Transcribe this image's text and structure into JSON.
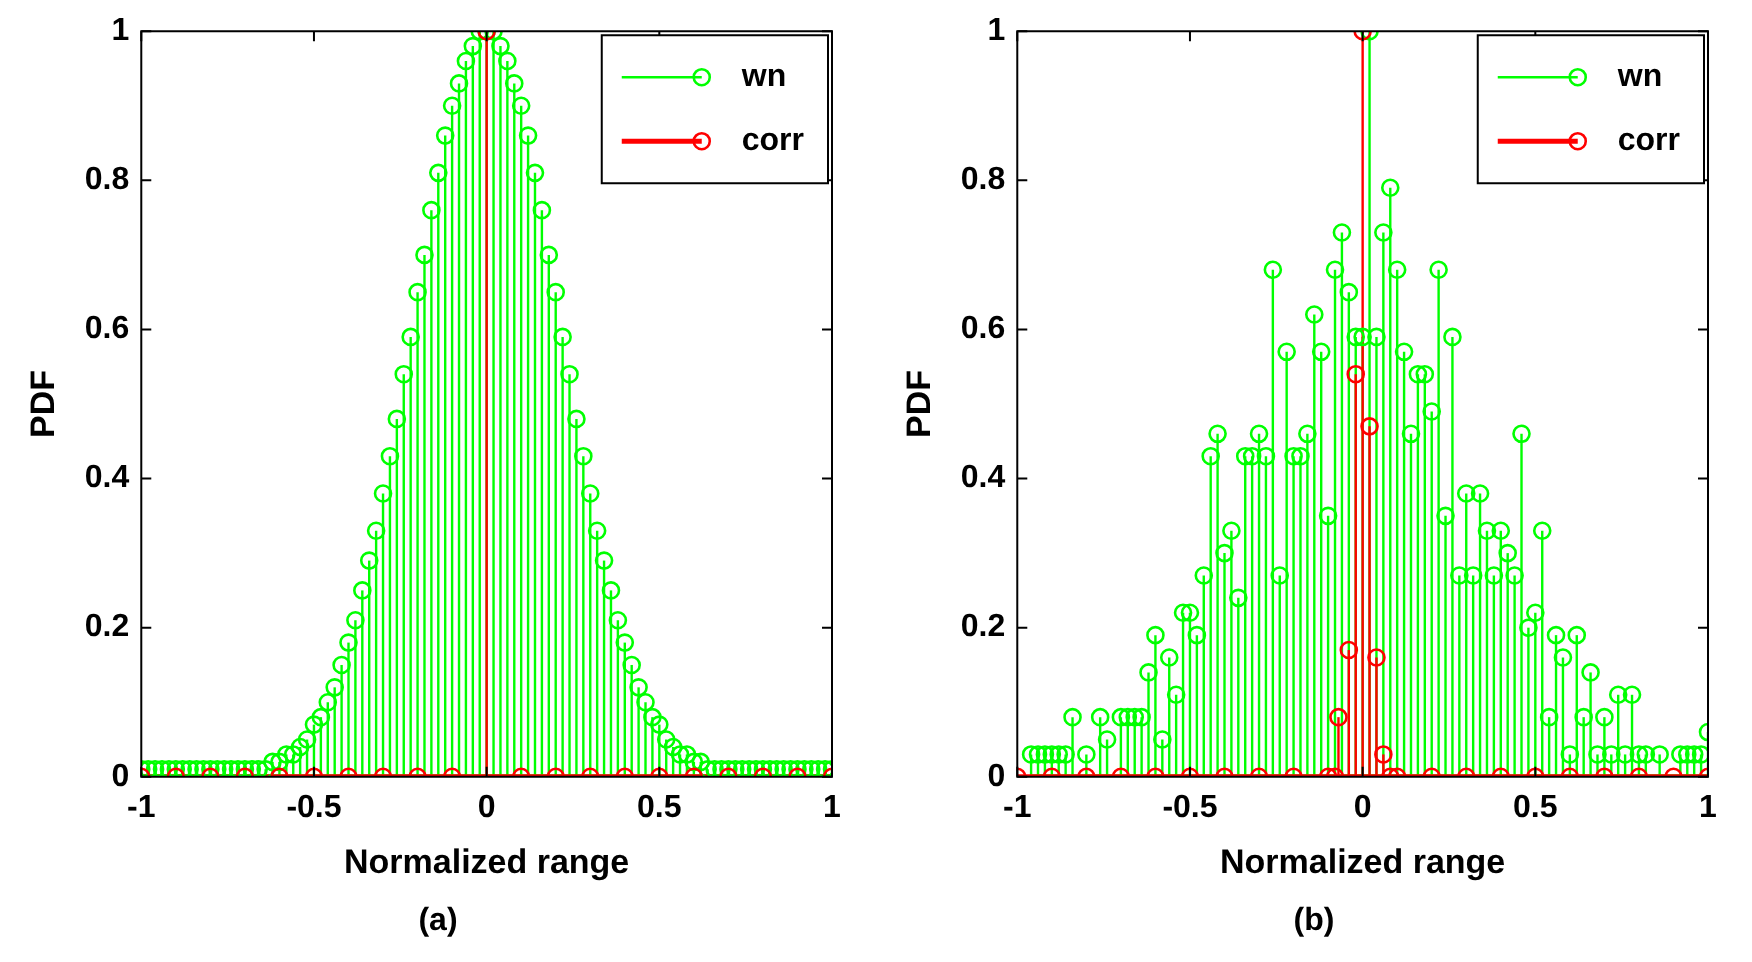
{
  "chart_data": [
    {
      "type": "lollipop",
      "xlabel": "Normalized range",
      "ylabel": "PDF",
      "annotations": [
        "(a)"
      ],
      "xlim": [
        -1,
        1
      ],
      "xticks": [
        -1,
        -0.5,
        0,
        0.5,
        1
      ],
      "ylim": [
        0,
        1
      ],
      "yticks": [
        0,
        0.2,
        0.4,
        0.6,
        0.8,
        1
      ],
      "legend": "top right",
      "marker": "circle",
      "series": [
        {
          "name": "wn",
          "color": "#00ff00",
          "x": [
            -1,
            -0.98,
            -0.96,
            -0.94,
            -0.92,
            -0.9,
            -0.88,
            -0.86,
            -0.84,
            -0.82,
            -0.8,
            -0.78,
            -0.76,
            -0.74,
            -0.72,
            -0.7,
            -0.68,
            -0.66,
            -0.64,
            -0.62,
            -0.6,
            -0.58,
            -0.56,
            -0.54,
            -0.52,
            -0.5,
            -0.48,
            -0.46,
            -0.44,
            -0.42,
            -0.4,
            -0.38,
            -0.36,
            -0.34,
            -0.32,
            -0.3,
            -0.28,
            -0.26,
            -0.24,
            -0.22,
            -0.2,
            -0.18,
            -0.16,
            -0.14,
            -0.12,
            -0.1,
            -0.08,
            -0.06,
            -0.04,
            -0.02,
            0,
            0.02,
            0.04,
            0.06,
            0.08,
            0.1,
            0.12,
            0.14,
            0.16,
            0.18,
            0.2,
            0.22,
            0.24,
            0.26,
            0.28,
            0.3,
            0.32,
            0.34,
            0.36,
            0.38,
            0.4,
            0.42,
            0.44,
            0.46,
            0.48,
            0.5,
            0.52,
            0.54,
            0.56,
            0.58,
            0.6,
            0.62,
            0.64,
            0.66,
            0.68,
            0.7,
            0.72,
            0.74,
            0.76,
            0.78,
            0.8,
            0.82,
            0.84,
            0.86,
            0.88,
            0.9,
            0.92,
            0.94,
            0.96,
            0.98,
            1
          ],
          "values": [
            0.01,
            0.01,
            0.01,
            0.01,
            0.01,
            0.01,
            0.01,
            0.01,
            0.01,
            0.01,
            0.01,
            0.01,
            0.01,
            0.01,
            0.01,
            0.01,
            0.01,
            0.01,
            0.01,
            0.02,
            0.02,
            0.03,
            0.03,
            0.04,
            0.05,
            0.07,
            0.08,
            0.1,
            0.12,
            0.15,
            0.18,
            0.21,
            0.25,
            0.29,
            0.33,
            0.38,
            0.43,
            0.48,
            0.54,
            0.59,
            0.65,
            0.7,
            0.76,
            0.81,
            0.86,
            0.9,
            0.93,
            0.96,
            0.98,
            1,
            1,
            1,
            0.98,
            0.96,
            0.93,
            0.9,
            0.86,
            0.81,
            0.76,
            0.7,
            0.65,
            0.59,
            0.54,
            0.48,
            0.43,
            0.38,
            0.33,
            0.29,
            0.25,
            0.21,
            0.18,
            0.15,
            0.12,
            0.1,
            0.08,
            0.07,
            0.05,
            0.04,
            0.03,
            0.03,
            0.02,
            0.02,
            0.01,
            0.01,
            0.01,
            0.01,
            0.01,
            0.01,
            0.01,
            0.01,
            0.01,
            0.01,
            0.01,
            0.01,
            0.01,
            0.01,
            0.01,
            0.01,
            0.01,
            0.01,
            0.01
          ]
        },
        {
          "name": "corr",
          "color": "#ff0000",
          "x": [
            -1,
            -0.9,
            -0.8,
            -0.7,
            -0.6,
            -0.5,
            -0.4,
            -0.3,
            -0.2,
            -0.1,
            0,
            0.1,
            0.2,
            0.3,
            0.4,
            0.5,
            0.6,
            0.7,
            0.8,
            0.9,
            1
          ],
          "values": [
            0,
            0,
            0,
            0,
            0,
            0,
            0,
            0,
            0,
            0,
            1,
            0,
            0,
            0,
            0,
            0,
            0,
            0,
            0,
            0,
            0
          ]
        }
      ]
    },
    {
      "type": "lollipop",
      "xlabel": "Normalized range",
      "ylabel": "PDF",
      "annotations": [
        "(b)"
      ],
      "xlim": [
        -1,
        1
      ],
      "xticks": [
        -1,
        -0.5,
        0,
        0.5,
        1
      ],
      "ylim": [
        0,
        1
      ],
      "yticks": [
        0,
        0.2,
        0.4,
        0.6,
        0.8,
        1
      ],
      "legend": "top right",
      "marker": "circle",
      "series": [
        {
          "name": "wn",
          "color": "#00ff00",
          "x": [
            -0.96,
            -0.94,
            -0.92,
            -0.9,
            -0.88,
            -0.86,
            -0.84,
            -0.8,
            -0.76,
            -0.74,
            -0.7,
            -0.68,
            -0.66,
            -0.64,
            -0.62,
            -0.6,
            -0.58,
            -0.56,
            -0.54,
            -0.52,
            -0.5,
            -0.48,
            -0.46,
            -0.44,
            -0.42,
            -0.4,
            -0.38,
            -0.36,
            -0.34,
            -0.32,
            -0.3,
            -0.28,
            -0.26,
            -0.24,
            -0.22,
            -0.2,
            -0.18,
            -0.16,
            -0.14,
            -0.12,
            -0.1,
            -0.08,
            -0.06,
            -0.04,
            -0.02,
            0,
            0.02,
            0.04,
            0.06,
            0.08,
            0.1,
            0.12,
            0.14,
            0.16,
            0.18,
            0.2,
            0.22,
            0.24,
            0.26,
            0.28,
            0.3,
            0.32,
            0.34,
            0.36,
            0.38,
            0.4,
            0.42,
            0.44,
            0.46,
            0.48,
            0.5,
            0.52,
            0.54,
            0.56,
            0.58,
            0.6,
            0.62,
            0.64,
            0.66,
            0.68,
            0.7,
            0.72,
            0.74,
            0.76,
            0.78,
            0.8,
            0.82,
            0.86,
            0.92,
            0.94,
            0.96,
            0.98,
            1
          ],
          "values": [
            0.03,
            0.03,
            0.03,
            0.03,
            0.03,
            0.03,
            0.08,
            0.03,
            0.08,
            0.05,
            0.08,
            0.08,
            0.08,
            0.08,
            0.14,
            0.19,
            0.05,
            0.16,
            0.11,
            0.22,
            0.22,
            0.19,
            0.27,
            0.43,
            0.46,
            0.3,
            0.33,
            0.24,
            0.43,
            0.43,
            0.46,
            0.43,
            0.68,
            0.27,
            0.57,
            0.43,
            0.43,
            0.46,
            0.62,
            0.57,
            0.35,
            0.68,
            0.73,
            0.65,
            0.59,
            0.59,
            1,
            0.59,
            0.73,
            0.79,
            0.68,
            0.57,
            0.46,
            0.54,
            0.54,
            0.49,
            0.68,
            0.35,
            0.59,
            0.27,
            0.38,
            0.27,
            0.38,
            0.33,
            0.27,
            0.33,
            0.3,
            0.27,
            0.46,
            0.2,
            0.22,
            0.33,
            0.08,
            0.19,
            0.16,
            0.03,
            0.19,
            0.08,
            0.14,
            0.03,
            0.08,
            0.03,
            0.11,
            0.03,
            0.11,
            0.03,
            0.03,
            0.03,
            0.03,
            0.03,
            0.03,
            0.03,
            0.06
          ]
        },
        {
          "name": "corr",
          "color": "#ff0000",
          "x": [
            -1,
            -0.9,
            -0.8,
            -0.7,
            -0.6,
            -0.5,
            -0.4,
            -0.3,
            -0.2,
            -0.1,
            -0.08,
            -0.07,
            -0.04,
            -0.02,
            0,
            0.02,
            0.04,
            0.06,
            0.08,
            0.1,
            0.2,
            0.3,
            0.4,
            0.5,
            0.6,
            0.7,
            0.8,
            0.9,
            1
          ],
          "values": [
            0,
            0,
            0,
            0,
            0,
            0,
            0,
            0,
            0,
            0,
            0,
            0.08,
            0.17,
            0.54,
            1,
            0.47,
            0.16,
            0.03,
            0,
            0,
            0,
            0,
            0,
            0,
            0,
            0,
            0,
            0,
            0
          ]
        }
      ]
    }
  ]
}
